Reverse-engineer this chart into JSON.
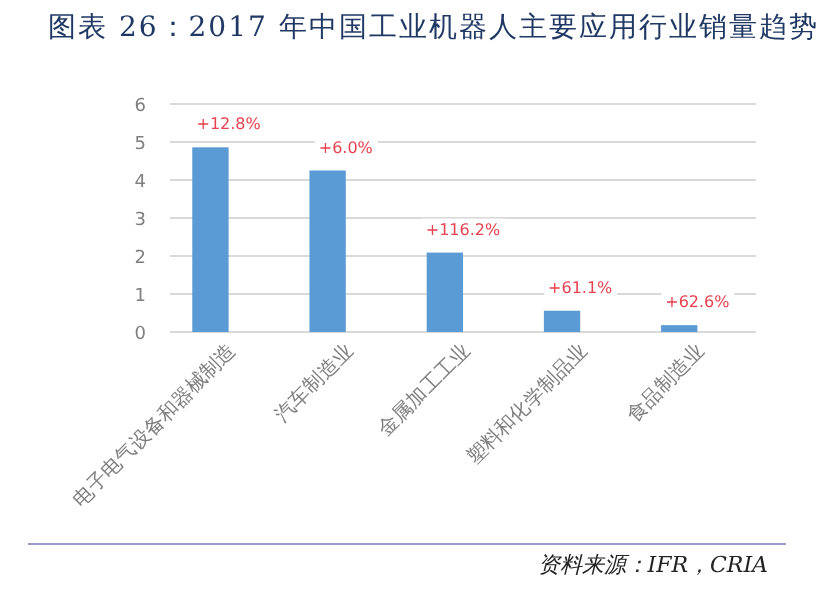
{
  "chart_data": {
    "type": "bar",
    "title": "图表 26：2017 年中国工业机器人主要应用行业销量趋势",
    "categories": [
      "电子电气设备和器械制造",
      "汽车制造业",
      "金属加工工业",
      "塑料和化学制品业",
      "食品制造业"
    ],
    "values": [
      4.86,
      4.25,
      2.09,
      0.56,
      0.18
    ],
    "color": "#5b9bd5",
    "ylim": [
      0,
      6
    ],
    "yticks": [
      0,
      1,
      2,
      3,
      4,
      5,
      6
    ],
    "grid": "y",
    "annotations": [
      {
        "text": "+12.8%",
        "x": "电子电气设备和器械制造",
        "y": 4.86
      },
      {
        "text": "+6.0%",
        "x": "汽车制造业",
        "y": 4.25
      },
      {
        "text": "+116.2%",
        "x": "金属加工工业",
        "y": 2.09
      },
      {
        "text": "+61.1%",
        "x": "塑料和化学制品业",
        "y": 0.56
      },
      {
        "text": "+62.6%",
        "x": "食品制造业",
        "y": 0.18
      },
      "资料来源：IFR，CRIA"
    ]
  }
}
